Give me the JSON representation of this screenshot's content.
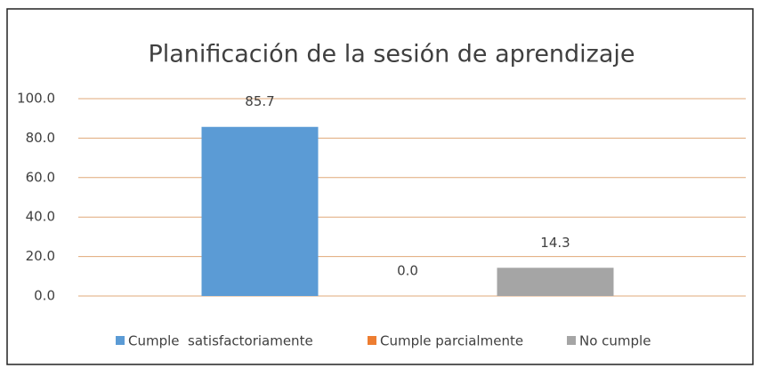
{
  "chart_data": {
    "type": "bar",
    "title": "Planificación de la sesión de aprendizaje",
    "categories": [
      null
    ],
    "series": [
      {
        "name": "Cumple  satisfactoriamente",
        "color": "#5b9bd5",
        "values": [
          85.7
        ],
        "value_labels": [
          "85.7"
        ]
      },
      {
        "name": "Cumple parcialmente",
        "color": "#ed7d31",
        "values": [
          0
        ],
        "value_labels": [
          "0.0"
        ]
      },
      {
        "name": "No cumple",
        "color": "#a5a5a5",
        "values": [
          14.3
        ],
        "value_labels": [
          "14.3"
        ]
      }
    ],
    "ylim": [
      0,
      100
    ],
    "yticks": [
      {
        "value": 0,
        "label": "0.0"
      },
      {
        "value": 20,
        "label": "20.0"
      },
      {
        "value": 40,
        "label": "40.0"
      },
      {
        "value": 60,
        "label": "60.0"
      },
      {
        "value": 80,
        "label": "80.0"
      },
      {
        "value": 100,
        "label": "100.0"
      }
    ],
    "grid": true,
    "legend": "bottom"
  }
}
